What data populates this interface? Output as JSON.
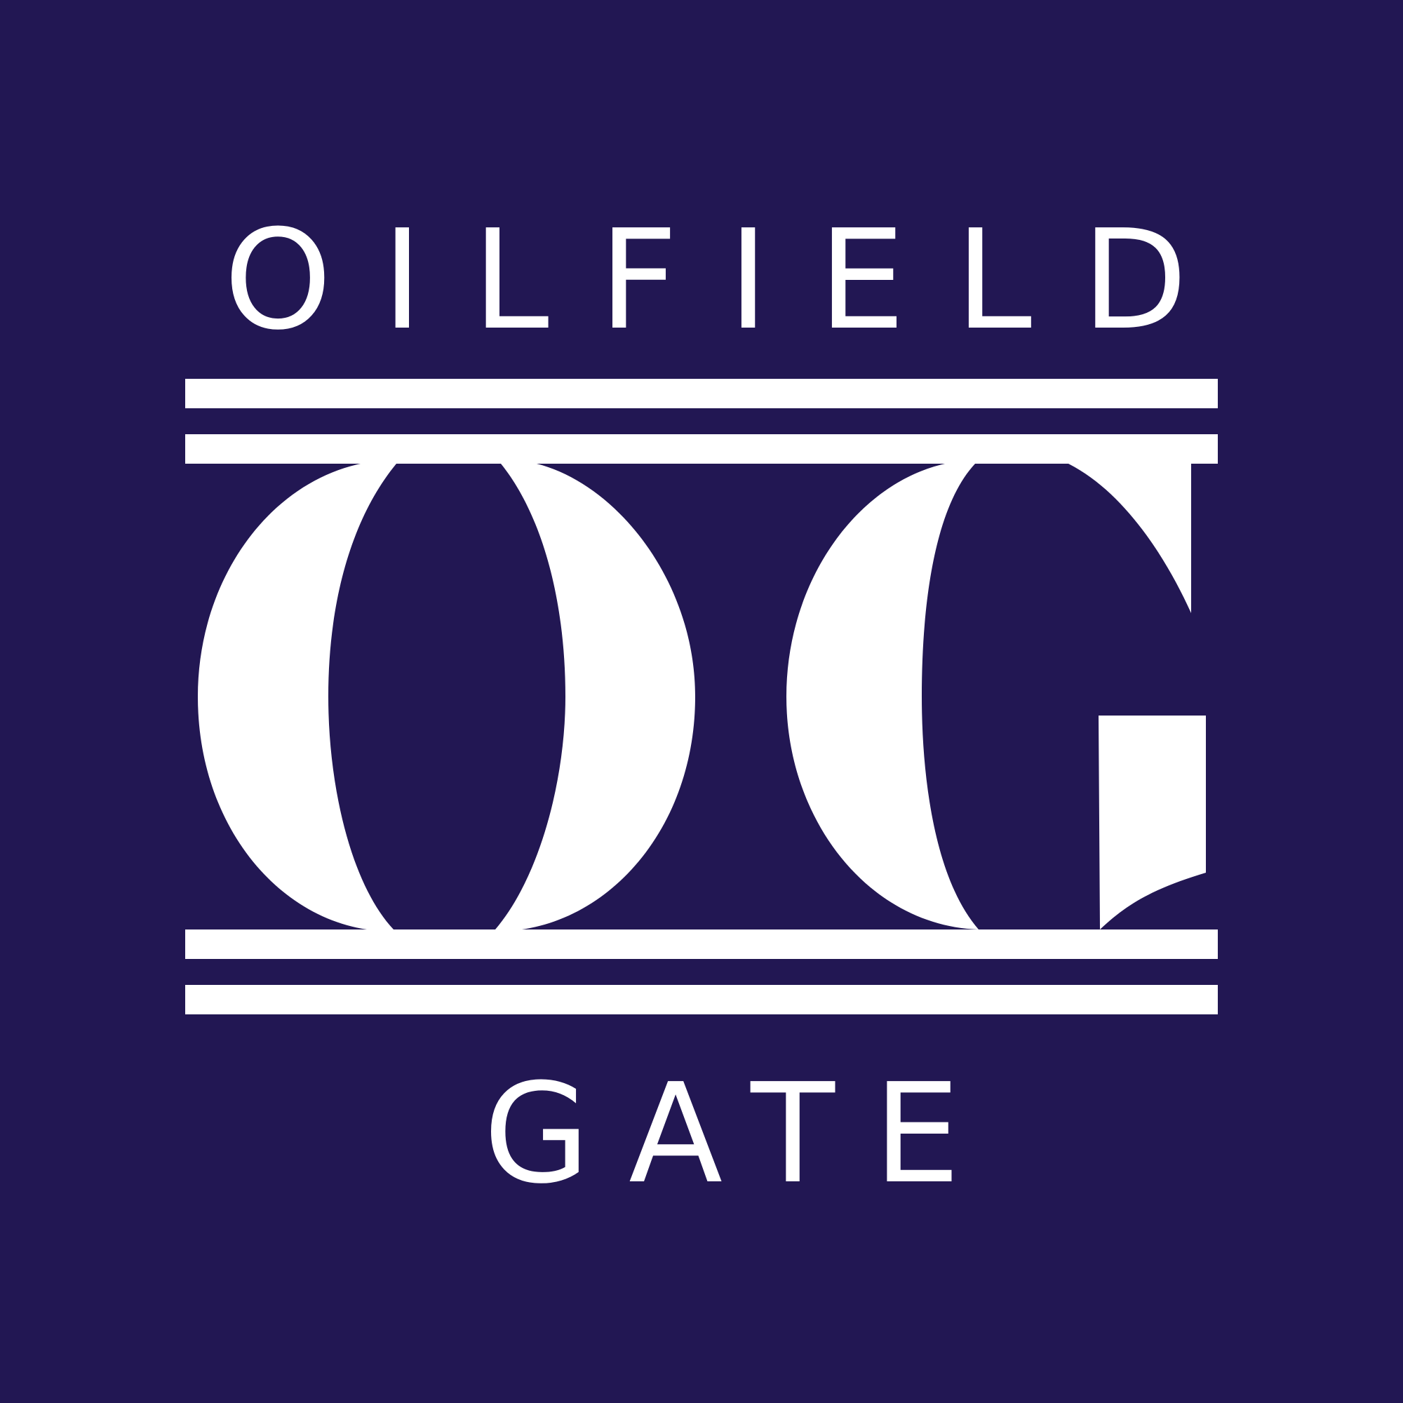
{
  "brand": {
    "name": "OILFIELD",
    "tagline": "GATE"
  }
}
